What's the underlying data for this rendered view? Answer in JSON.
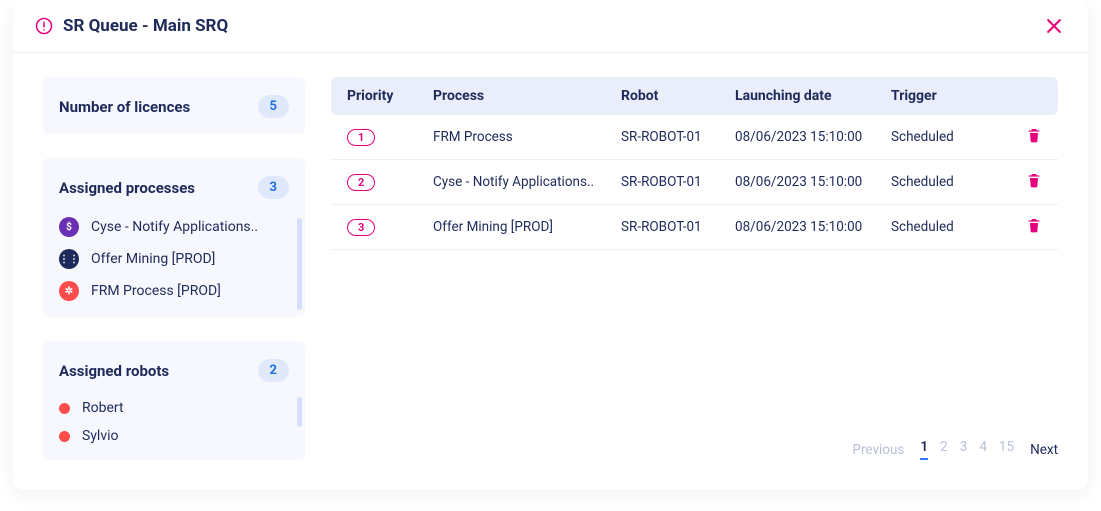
{
  "header": {
    "title": "SR Queue - Main SRQ",
    "accent_color": "#e6007e"
  },
  "sidebar": {
    "licences": {
      "title": "Number of licences",
      "count": "5",
      "badge_bg": "#dfe9fb",
      "badge_fg": "#1f6fe0"
    },
    "processes": {
      "title": "Assigned processes",
      "count": "3",
      "items": [
        {
          "label": "Cyse - Notify Applications..",
          "icon_bg": "#6b2fb3",
          "icon_glyph": "$"
        },
        {
          "label": "Offer Mining [PROD]",
          "icon_bg": "#1e2a5a",
          "icon_glyph": "⋮⋮"
        },
        {
          "label": "FRM Process [PROD]",
          "icon_bg": "#ff4d4d",
          "icon_glyph": "✲"
        }
      ]
    },
    "robots": {
      "title": "Assigned robots",
      "count": "2",
      "items": [
        {
          "label": "Robert",
          "dot_color": "#ff4d4d"
        },
        {
          "label": "Sylvio",
          "dot_color": "#ff4d4d"
        }
      ]
    },
    "card_bg": "#f6f8fe",
    "scroll_color": "#d6defd"
  },
  "table": {
    "headers": {
      "priority": "Priority",
      "process": "Process",
      "robot": "Robot",
      "date": "Launching date",
      "trigger": "Trigger"
    },
    "header_bg": "#eaeefb",
    "priority_border": "#e6007e",
    "rows": [
      {
        "priority": "1",
        "process": "FRM Process",
        "robot": "SR-ROBOT-01",
        "date": "08/06/2023 15:10:00",
        "trigger": "Scheduled"
      },
      {
        "priority": "2",
        "process": "Cyse - Notify Applications..",
        "robot": "SR-ROBOT-01",
        "date": "08/06/2023 15:10:00",
        "trigger": "Scheduled"
      },
      {
        "priority": "3",
        "process": "Offer Mining [PROD]",
        "robot": "SR-ROBOT-01",
        "date": "08/06/2023 15:10:00",
        "trigger": "Scheduled"
      }
    ]
  },
  "pagination": {
    "prev": "Previous",
    "next": "Next",
    "pages": [
      "1",
      "2",
      "3",
      "4",
      "15"
    ],
    "active": "1"
  }
}
